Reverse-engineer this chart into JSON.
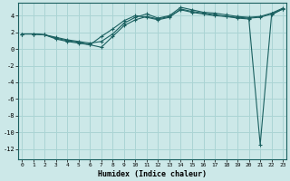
{
  "xlabel": "Humidex (Indice chaleur)",
  "bg_color": "#cce8e8",
  "grid_color": "#aad4d4",
  "line_color": "#1a6060",
  "x_ticks": [
    0,
    1,
    2,
    3,
    4,
    5,
    6,
    7,
    8,
    9,
    10,
    11,
    12,
    13,
    14,
    15,
    16,
    17,
    18,
    19,
    20,
    21,
    22,
    23
  ],
  "y_ticks": [
    -12,
    -10,
    -8,
    -6,
    -4,
    -2,
    0,
    2,
    4
  ],
  "xlim": [
    -0.3,
    23.3
  ],
  "ylim": [
    -13.2,
    5.5
  ],
  "series": [
    [
      1.8,
      1.8,
      1.7,
      1.4,
      1.1,
      0.9,
      0.7,
      0.9,
      1.8,
      3.1,
      3.8,
      4.2,
      3.7,
      4.0,
      5.0,
      4.7,
      4.4,
      4.3,
      4.1,
      3.9,
      3.8,
      3.9,
      4.3,
      4.9
    ],
    [
      1.8,
      1.8,
      1.7,
      1.3,
      1.0,
      0.8,
      0.5,
      0.2,
      1.5,
      2.8,
      3.5,
      3.9,
      3.6,
      3.9,
      4.7,
      4.4,
      4.2,
      4.0,
      3.9,
      3.7,
      3.6,
      -11.5,
      4.1,
      4.8
    ],
    [
      1.8,
      1.8,
      1.7,
      1.2,
      0.9,
      0.7,
      0.5,
      1.5,
      2.4,
      3.4,
      4.0,
      3.8,
      3.5,
      3.8,
      4.8,
      4.5,
      4.3,
      4.1,
      3.9,
      3.8,
      3.7,
      3.8,
      4.2,
      4.8
    ]
  ]
}
